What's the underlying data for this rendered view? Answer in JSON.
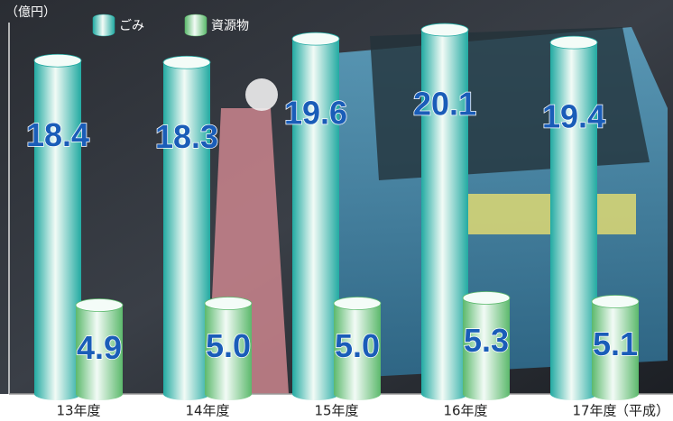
{
  "chart_data": {
    "type": "bar",
    "unit_label": "（億円）",
    "x_note": "（平成）",
    "categories": [
      "13年度",
      "14年度",
      "15年度",
      "16年度",
      "17年度"
    ],
    "series": [
      {
        "name": "ごみ",
        "color": "#22aaa2",
        "values": [
          18.4,
          18.3,
          19.6,
          20.1,
          19.4
        ]
      },
      {
        "name": "資源物",
        "color": "#5cb96c",
        "values": [
          4.9,
          5.0,
          5.0,
          5.3,
          5.1
        ],
        "value_labels": [
          "4.9",
          "5.0",
          "5.0",
          "5.3",
          "5.1"
        ]
      }
    ],
    "ylim": [
      0,
      21
    ]
  }
}
